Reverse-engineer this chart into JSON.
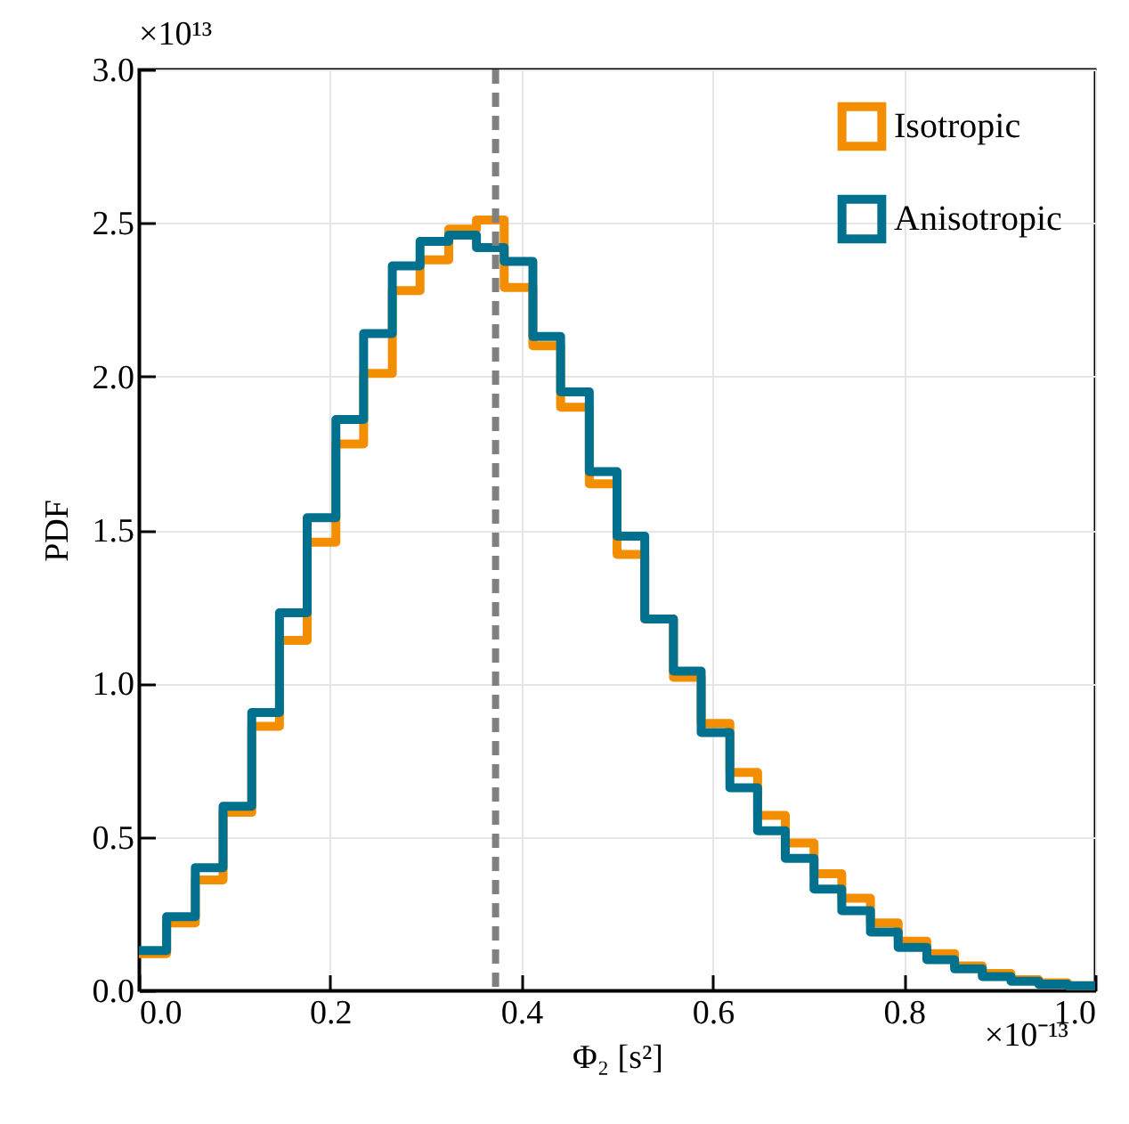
{
  "chart_data": {
    "type": "histogram",
    "xlabel": "Φ₂ [s²]",
    "ylabel": "PDF",
    "annotations": [
      "×10¹³",
      "×10⁻¹³"
    ],
    "bins": [
      0,
      0.029,
      0.059,
      0.088,
      0.118,
      0.147,
      0.176,
      0.206,
      0.235,
      0.265,
      0.294,
      0.324,
      0.353,
      0.382,
      0.412,
      0.441,
      0.471,
      0.5,
      0.529,
      0.559,
      0.588,
      0.618,
      0.647,
      0.676,
      0.706,
      0.735,
      0.765,
      0.794,
      0.824,
      0.853,
      0.882,
      0.912,
      0.941,
      0.971,
      1.0
    ],
    "series": [
      {
        "name": "Isotropic",
        "color": "#f28e00",
        "values": [
          0.12,
          0.22,
          0.36,
          0.58,
          0.86,
          1.14,
          1.46,
          1.78,
          2.01,
          2.28,
          2.38,
          2.48,
          2.51,
          2.29,
          2.1,
          1.9,
          1.65,
          1.42,
          1.21,
          1.02,
          0.87,
          0.71,
          0.57,
          0.48,
          0.38,
          0.3,
          0.22,
          0.16,
          0.12,
          0.08,
          0.055,
          0.035,
          0.025,
          0.015
        ]
      },
      {
        "name": "Anisotropic",
        "color": "#00708f",
        "values": [
          0.13,
          0.24,
          0.4,
          0.6,
          0.905,
          1.23,
          1.54,
          1.86,
          2.14,
          2.36,
          2.44,
          2.46,
          2.42,
          2.375,
          2.13,
          1.95,
          1.69,
          1.48,
          1.21,
          1.04,
          0.84,
          0.66,
          0.52,
          0.43,
          0.33,
          0.26,
          0.19,
          0.14,
          0.1,
          0.07,
          0.045,
          0.03,
          0.02,
          0.015
        ]
      }
    ],
    "ref_lines": [
      {
        "axis": "x",
        "value": 0.373,
        "color": "#808080",
        "line_style": "dashed"
      }
    ],
    "xlim": [
      0,
      1.0
    ],
    "xticks": [
      {
        "value": 0,
        "label": "0.0"
      },
      0.2,
      0.4,
      0.6,
      0.8,
      {
        "value": 1,
        "label": "1.0"
      }
    ],
    "ylim": [
      0,
      3.0
    ],
    "yticks": [
      {
        "value": 0,
        "label": "0.0"
      },
      0.5,
      {
        "value": 1,
        "label": "1.0"
      },
      1.5,
      {
        "value": 2,
        "label": "2.0"
      },
      2.5,
      {
        "value": 3,
        "label": "3.0"
      }
    ],
    "grid": true,
    "legend": "top right",
    "line_style": "solid"
  }
}
